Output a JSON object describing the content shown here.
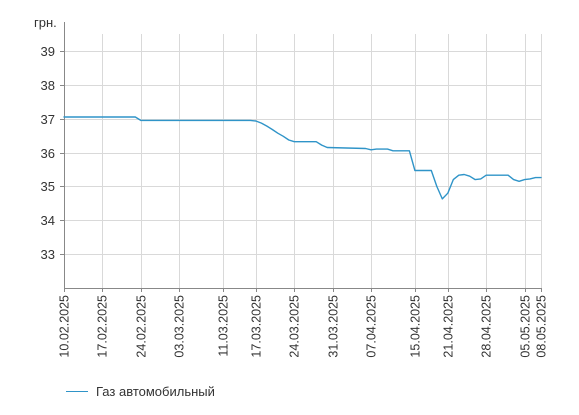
{
  "chart_data": {
    "type": "line",
    "unit_label": "грн.",
    "ylim": [
      32,
      39.5
    ],
    "yticks": [
      33,
      34,
      35,
      36,
      37,
      38,
      39
    ],
    "grid": "vertical and horizontal",
    "legend_position": "bottom-left",
    "colors": {
      "series": "#2f94c8",
      "grid": "#d9d9d9",
      "axis": "#888888",
      "text": "#333333"
    },
    "xrange": [
      "2025-02-10",
      "2025-05-08"
    ],
    "xticks": [
      {
        "date": "2025-02-10",
        "label": "10.02.2025"
      },
      {
        "date": "2025-02-17",
        "label": "17.02.2025"
      },
      {
        "date": "2025-02-24",
        "label": "24.02.2025"
      },
      {
        "date": "2025-03-03",
        "label": "03.03.2025"
      },
      {
        "date": "2025-03-11",
        "label": "11.03.2025"
      },
      {
        "date": "2025-03-17",
        "label": "17.03.2025"
      },
      {
        "date": "2025-03-24",
        "label": "24.03.2025"
      },
      {
        "date": "2025-03-31",
        "label": "31.03.2025"
      },
      {
        "date": "2025-04-07",
        "label": "07.04.2025"
      },
      {
        "date": "2025-04-15",
        "label": "15.04.2025"
      },
      {
        "date": "2025-04-21",
        "label": "21.04.2025"
      },
      {
        "date": "2025-04-28",
        "label": "28.04.2025"
      },
      {
        "date": "2025-05-05",
        "label": "05.05.2025"
      },
      {
        "date": "2025-05-08",
        "label": "08.05.2025"
      }
    ],
    "series": [
      {
        "name": "Газ автомобильный",
        "points": [
          {
            "date": "2025-02-10",
            "y": 37.05
          },
          {
            "date": "2025-02-23",
            "y": 37.05
          },
          {
            "date": "2025-02-24",
            "y": 36.95
          },
          {
            "date": "2025-03-16",
            "y": 36.95
          },
          {
            "date": "2025-03-17",
            "y": 36.93
          },
          {
            "date": "2025-03-18",
            "y": 36.87
          },
          {
            "date": "2025-03-19",
            "y": 36.78
          },
          {
            "date": "2025-03-20",
            "y": 36.68
          },
          {
            "date": "2025-03-21",
            "y": 36.57
          },
          {
            "date": "2025-03-22",
            "y": 36.48
          },
          {
            "date": "2025-03-23",
            "y": 36.37
          },
          {
            "date": "2025-03-24",
            "y": 36.32
          },
          {
            "date": "2025-03-28",
            "y": 36.32
          },
          {
            "date": "2025-03-29",
            "y": 36.22
          },
          {
            "date": "2025-03-30",
            "y": 36.15
          },
          {
            "date": "2025-04-06",
            "y": 36.12
          },
          {
            "date": "2025-04-07",
            "y": 36.08
          },
          {
            "date": "2025-04-08",
            "y": 36.1
          },
          {
            "date": "2025-04-10",
            "y": 36.1
          },
          {
            "date": "2025-04-11",
            "y": 36.05
          },
          {
            "date": "2025-04-14",
            "y": 36.05
          },
          {
            "date": "2025-04-15",
            "y": 35.47
          },
          {
            "date": "2025-04-18",
            "y": 35.47
          },
          {
            "date": "2025-04-19",
            "y": 35.0
          },
          {
            "date": "2025-04-20",
            "y": 34.63
          },
          {
            "date": "2025-04-21",
            "y": 34.8
          },
          {
            "date": "2025-04-22",
            "y": 35.2
          },
          {
            "date": "2025-04-23",
            "y": 35.33
          },
          {
            "date": "2025-04-24",
            "y": 35.35
          },
          {
            "date": "2025-04-25",
            "y": 35.3
          },
          {
            "date": "2025-04-26",
            "y": 35.2
          },
          {
            "date": "2025-04-27",
            "y": 35.22
          },
          {
            "date": "2025-04-28",
            "y": 35.33
          },
          {
            "date": "2025-05-02",
            "y": 35.33
          },
          {
            "date": "2025-05-03",
            "y": 35.2
          },
          {
            "date": "2025-05-04",
            "y": 35.15
          },
          {
            "date": "2025-05-05",
            "y": 35.2
          },
          {
            "date": "2025-05-06",
            "y": 35.22
          },
          {
            "date": "2025-05-07",
            "y": 35.26
          },
          {
            "date": "2025-05-08",
            "y": 35.26
          }
        ]
      }
    ]
  }
}
